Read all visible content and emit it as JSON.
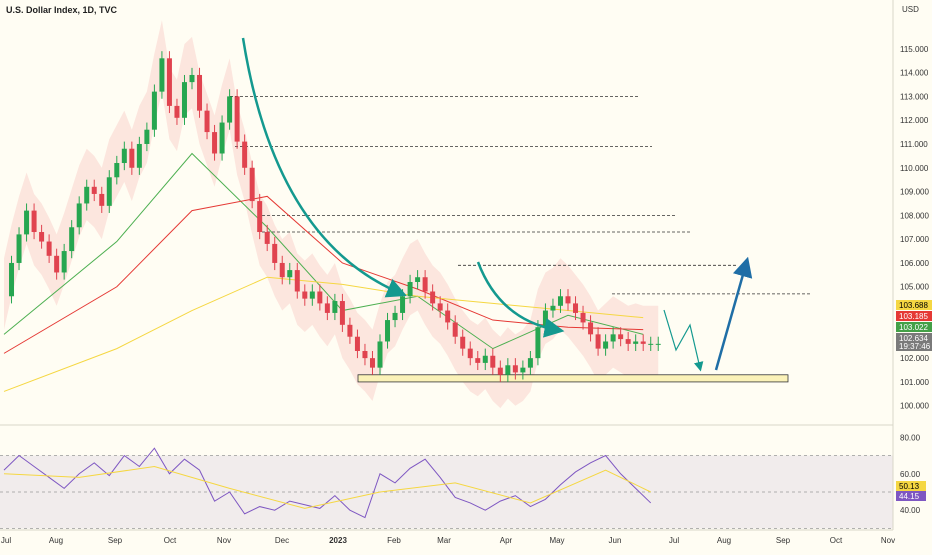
{
  "header": {
    "title": "U.S. Dollar Index, 1D, TVC",
    "currency": "USD"
  },
  "colors": {
    "background": "#fffdf3",
    "candle_up": "#26a650",
    "candle_down": "#e0434f",
    "ma_fast": "#4caf50",
    "ma_mid": "#e53935",
    "ma_slow": "#f5d742",
    "band_fill_red": "#f8c9c6",
    "band_fill_green": "#cfe9c8",
    "arrow_teal": "#14998f",
    "arrow_blue": "#1f6ea6",
    "zone_fill": "#fbf2b8",
    "rsi_line": "#7e57c2",
    "rsi_ma": "#f5d742",
    "rsi_band": "#ede7ea"
  },
  "chart_data": [
    {
      "type": "line",
      "name": "price",
      "x_ticks": [
        "Jul",
        "Aug",
        "Sep",
        "Oct",
        "Nov",
        "Dec",
        "2023",
        "Feb",
        "Mar",
        "Apr",
        "May",
        "Jun",
        "Jul",
        "Aug",
        "Sep",
        "Oct",
        "Nov"
      ],
      "y_ticks": [
        "115.000",
        "114.000",
        "113.000",
        "112.000",
        "111.000",
        "110.000",
        "109.000",
        "108.000",
        "107.000",
        "106.000",
        "105.000",
        "102.000",
        "101.000",
        "100.000"
      ],
      "ylim": [
        99.4,
        116.0
      ],
      "series": [
        {
          "name": "",
          "x": [
            0,
            4,
            8,
            12,
            16,
            20,
            24,
            28,
            32,
            36,
            40,
            44,
            48,
            52,
            56,
            60,
            64,
            68,
            72,
            76,
            80,
            84,
            88,
            92,
            96,
            100,
            104,
            108,
            112,
            116,
            120,
            124,
            128,
            132,
            136,
            140,
            144,
            148,
            152,
            156,
            160,
            164,
            168,
            172,
            176,
            180,
            184,
            188,
            192,
            196,
            200,
            204,
            208,
            212,
            216,
            220,
            224,
            228,
            232,
            236,
            240,
            244,
            248,
            252,
            256,
            260,
            264,
            268,
            272,
            276,
            280,
            284,
            288,
            292,
            296,
            300,
            304,
            308,
            312,
            316,
            320,
            324,
            328,
            332,
            336,
            340,
            344,
            348
          ],
          "values": [
            104.6,
            106.0,
            107.2,
            108.2,
            107.3,
            106.9,
            106.3,
            105.6,
            106.5,
            107.5,
            108.5,
            109.2,
            108.9,
            108.4,
            109.6,
            110.2,
            110.8,
            110.0,
            111.0,
            111.6,
            113.2,
            114.6,
            112.6,
            112.1,
            113.6,
            113.9,
            112.4,
            111.5,
            110.6,
            111.9,
            113.0,
            111.1,
            110.0,
            108.6,
            107.3,
            106.8,
            106.0,
            105.4,
            105.7,
            104.8,
            104.5,
            104.8,
            104.3,
            103.9,
            104.4,
            103.4,
            102.9,
            102.3,
            102.0,
            101.6,
            102.7,
            103.6,
            103.9,
            104.6,
            105.2,
            105.4,
            104.8,
            104.3,
            104.0,
            103.5,
            102.9,
            102.4,
            102.0,
            101.8,
            102.1,
            101.6,
            101.3,
            101.7,
            101.4,
            101.6,
            102.0,
            103.3,
            104.0,
            104.2,
            104.6,
            104.3,
            103.9,
            103.5,
            103.0,
            102.4,
            102.7,
            103.0,
            102.8,
            102.6,
            102.7,
            102.6,
            102.6,
            102.6
          ]
        },
        {
          "name": "",
          "x": [
            0,
            60,
            100,
            140,
            180,
            220,
            260,
            300,
            340
          ],
          "values": [
            103.0,
            106.9,
            110.6,
            107.5,
            104.0,
            104.6,
            102.4,
            103.8,
            103.0
          ]
        },
        {
          "name": "",
          "x": [
            0,
            60,
            100,
            140,
            180,
            220,
            260,
            300,
            340
          ],
          "values": [
            102.2,
            105.0,
            108.2,
            108.8,
            106.0,
            104.9,
            103.6,
            103.3,
            103.2
          ]
        },
        {
          "name": "",
          "x": [
            0,
            60,
            100,
            140,
            180,
            220,
            260,
            300,
            340
          ],
          "values": [
            100.6,
            102.4,
            104.0,
            105.4,
            105.1,
            104.6,
            104.3,
            104.0,
            103.7
          ]
        }
      ],
      "levels": [
        113.0,
        110.9,
        108.0,
        107.3,
        105.9,
        104.7
      ],
      "support_zone": [
        101.0,
        101.3
      ],
      "badges": [
        "103.688",
        "103.185",
        "103.022",
        "102.634",
        "19:37:46"
      ]
    },
    {
      "type": "line",
      "name": "rsi",
      "y_ticks": [
        "80.00",
        "60.00",
        "40.00"
      ],
      "ylim": [
        33,
        84
      ],
      "band": [
        30,
        70
      ],
      "series": [
        {
          "name": "",
          "x": [
            0,
            8,
            16,
            24,
            32,
            40,
            48,
            56,
            64,
            72,
            80,
            88,
            96,
            104,
            112,
            120,
            128,
            136,
            144,
            152,
            160,
            168,
            176,
            184,
            192,
            200,
            208,
            216,
            224,
            232,
            240,
            248,
            256,
            264,
            272,
            280,
            288,
            296,
            304,
            312,
            320,
            328,
            336,
            344
          ],
          "values": [
            62,
            70,
            64,
            58,
            52,
            60,
            66,
            59,
            70,
            64,
            74,
            60,
            68,
            62,
            45,
            50,
            38,
            42,
            40,
            45,
            43,
            41,
            48,
            40,
            36,
            60,
            55,
            63,
            68,
            58,
            47,
            44,
            40,
            45,
            48,
            42,
            46,
            54,
            61,
            66,
            70,
            60,
            52,
            44
          ]
        },
        {
          "name": "",
          "x": [
            0,
            40,
            80,
            120,
            160,
            200,
            240,
            280,
            320,
            344
          ],
          "values": [
            60,
            58,
            64,
            52,
            41,
            50,
            55,
            44,
            62,
            50
          ]
        }
      ],
      "badges": [
        "50.13",
        "44.15"
      ]
    }
  ]
}
